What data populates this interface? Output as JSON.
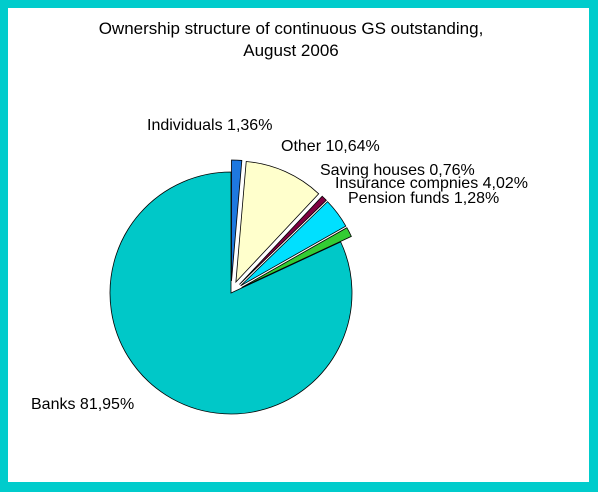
{
  "chart_data": {
    "type": "pie",
    "title_lines": [
      "Ownership structure of continuous GS outstanding,",
      "August 2006"
    ],
    "slices": [
      {
        "name": "Banks",
        "value": 81.95,
        "label": "Banks 81,95%",
        "color": "#00C8C8",
        "exploded": false
      },
      {
        "name": "Individuals",
        "value": 1.36,
        "label": "Individuals 1,36%",
        "color": "#1E78E0",
        "exploded": true
      },
      {
        "name": "Other",
        "value": 10.64,
        "label": "Other 10,64%",
        "color": "#FFFFCC",
        "exploded": true
      },
      {
        "name": "Saving houses",
        "value": 0.76,
        "label": "Saving houses 0,76%",
        "color": "#800040",
        "exploded": true
      },
      {
        "name": "Insurance compnies",
        "value": 4.02,
        "label": "Insurance compnies 4,02%",
        "color": "#00E0FF",
        "exploded": true
      },
      {
        "name": "Pension funds",
        "value": 1.28,
        "label": "Pension funds 1,28%",
        "color": "#33CC33",
        "exploded": true
      }
    ],
    "legend": "none"
  }
}
